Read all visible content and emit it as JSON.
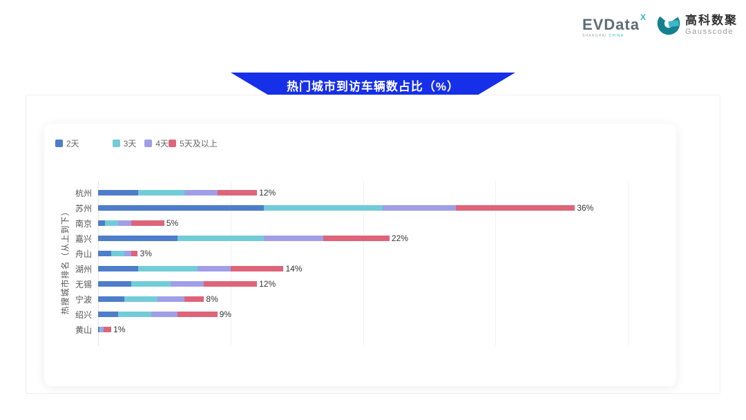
{
  "header": {
    "brand": {
      "name": "EVData",
      "sup": "X",
      "subtext_left": "SHANGHAI",
      "subtext_right": "CHINA"
    },
    "partner": {
      "name_cn": "高科数聚",
      "name_en": "Gausscode"
    }
  },
  "banner": {
    "title": "热门城市到访车辆数占比（%）",
    "color": "#162fe9"
  },
  "chart_data": {
    "type": "bar",
    "orientation": "horizontal",
    "stacked": true,
    "title": "热门城市到访车辆数占比（%）",
    "ylabel": "热搜城市排名（从上到下）",
    "xlabel": "",
    "xlim": [
      0,
      40
    ],
    "gridlines": [
      0,
      10,
      20,
      30,
      40
    ],
    "legend_position": "top-left",
    "categories": [
      "杭州",
      "苏州",
      "南京",
      "嘉兴",
      "舟山",
      "湖州",
      "无锡",
      "宁波",
      "绍兴",
      "黄山"
    ],
    "series": [
      {
        "name": "2天",
        "color": "#4e7dca",
        "values": [
          3,
          12.5,
          0.5,
          6,
          1,
          3,
          2.5,
          2,
          1.5,
          0.1
        ]
      },
      {
        "name": "3天",
        "color": "#72ccd7",
        "values": [
          3.5,
          9,
          1,
          6.5,
          1,
          4.5,
          3,
          2.5,
          2.5,
          0.1
        ]
      },
      {
        "name": "4天",
        "color": "#a19ee8",
        "values": [
          2.5,
          5.5,
          1,
          4.5,
          0.5,
          2.5,
          2.5,
          2,
          2,
          0.2
        ]
      },
      {
        "name": "5天及以上",
        "color": "#de6579",
        "values": [
          3,
          9,
          2.5,
          5,
          0.5,
          4,
          4,
          1.5,
          3,
          0.6
        ]
      }
    ],
    "totals": [
      12,
      36,
      5,
      22,
      3,
      14,
      12,
      8,
      9,
      1
    ],
    "total_labels": [
      "12%",
      "36%",
      "5%",
      "22%",
      "3%",
      "14%",
      "12%",
      "8%",
      "9%",
      "1%"
    ]
  }
}
